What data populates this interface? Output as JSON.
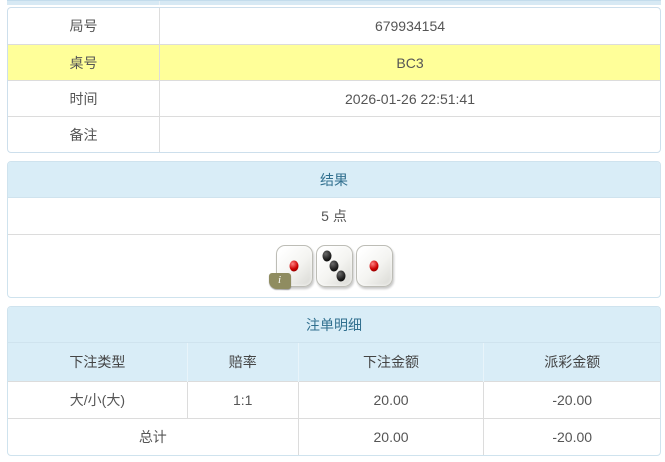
{
  "colors": {
    "accent_text": "#31708f",
    "panel_header_bg": "#d9edf7",
    "highlight_row_bg": "#ffff99",
    "negative_amount": "#ee0000"
  },
  "info_table": {
    "rows": [
      {
        "label": "局号",
        "value": "679934154"
      },
      {
        "label": "桌号",
        "value": "BC3"
      },
      {
        "label": "时间",
        "value": "2026-01-26 22:51:41"
      },
      {
        "label": "备注",
        "value": ""
      }
    ]
  },
  "result_panel": {
    "title": "结果",
    "points": "5 点",
    "dice": [
      {
        "value": 1,
        "pip_color": "red"
      },
      {
        "value": 3,
        "pip_color": "black"
      },
      {
        "value": 1,
        "pip_color": "red"
      }
    ],
    "info_badge": "i"
  },
  "bets_panel": {
    "title": "注单明细",
    "columns": [
      "下注类型",
      "赔率",
      "下注金额",
      "派彩金额"
    ],
    "rows": [
      {
        "bet_type": "大/小(大)",
        "odds": "1:1",
        "bet_amount": "20.00",
        "payout": "-20.00"
      }
    ],
    "total": {
      "label": "总计",
      "bet_amount": "20.00",
      "payout": "-20.00"
    }
  }
}
